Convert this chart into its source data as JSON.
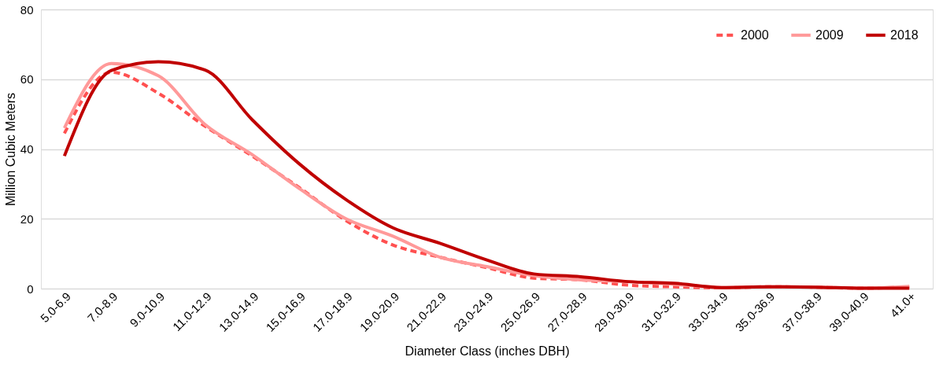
{
  "chart_data": {
    "type": "line",
    "xlabel": "Diameter Class (inches DBH)",
    "ylabel": "Million Cubic Meters",
    "categories": [
      "5.0-6.9",
      "7.0-8.9",
      "9.0-10.9",
      "11.0-12.9",
      "13.0-14.9",
      "15.0-16.9",
      "17.0-18.9",
      "19.0-20.9",
      "21.0-22.9",
      "23.0-24.9",
      "25.0-26.9",
      "27.0-28.9",
      "29.0-30.9",
      "31.0-32.9",
      "33.0-34.9",
      "35.0-36.9",
      "37.0-38.9",
      "39.0-40.9",
      "41.0+"
    ],
    "series": [
      {
        "name": "2000",
        "color": "#ff5050",
        "line_style": "dashed",
        "values": [
          44.5,
          62,
          56,
          46.5,
          38,
          29,
          19.5,
          12.5,
          9,
          6,
          3,
          2.5,
          1,
          0.5,
          0.2,
          0.5,
          0.4,
          0.1,
          0.5
        ]
      },
      {
        "name": "2009",
        "color": "#ff9999",
        "line_style": "solid",
        "values": [
          46,
          64.5,
          61,
          47,
          38.4,
          28.7,
          20,
          15,
          9,
          6.3,
          3.7,
          2.5,
          2,
          1.2,
          0.3,
          0.5,
          0.4,
          0.1,
          0.6
        ]
      },
      {
        "name": "2018",
        "color": "#c00000",
        "line_style": "solid",
        "values": [
          38,
          62.5,
          65,
          62.6,
          48.4,
          35.8,
          25.5,
          17.4,
          13,
          8.2,
          4.2,
          3.4,
          2,
          1.5,
          0.3,
          0.5,
          0.4,
          0.1,
          0.1
        ]
      }
    ],
    "ylim": [
      0,
      80
    ],
    "yticks": [
      0,
      20,
      40,
      60,
      80
    ],
    "grid": "y",
    "legend": "top right"
  }
}
